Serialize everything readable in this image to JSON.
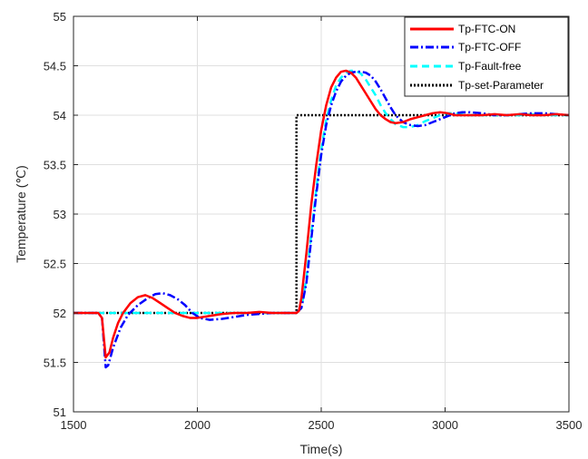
{
  "chart_data": {
    "type": "line",
    "title": "",
    "xlabel": "Time(s)",
    "ylabel": "Temperature (℃)",
    "xlim": [
      1500,
      3500
    ],
    "ylim": [
      51,
      55
    ],
    "x_ticks": [
      1500,
      2000,
      2500,
      3000,
      3500
    ],
    "y_ticks": [
      51,
      51.5,
      52,
      52.5,
      53,
      53.5,
      54,
      54.5,
      55
    ],
    "x_tick_labels": [
      "1500",
      "2000",
      "2500",
      "3000",
      "3500"
    ],
    "y_tick_labels": [
      "51",
      "51.5",
      "52",
      "52.5",
      "53",
      "53.5",
      "54",
      "54.5",
      "55"
    ],
    "grid": true,
    "legend_position": "top-right",
    "series": [
      {
        "name": "Tp-FTC-ON",
        "color": "#ff0000",
        "style": "solid",
        "x": [
          1500,
          1600,
          1615,
          1630,
          1645,
          1660,
          1680,
          1700,
          1730,
          1760,
          1790,
          1820,
          1850,
          1880,
          1910,
          1940,
          1970,
          2000,
          2050,
          2100,
          2150,
          2200,
          2250,
          2300,
          2350,
          2400,
          2410,
          2420,
          2440,
          2460,
          2480,
          2500,
          2520,
          2540,
          2560,
          2580,
          2600,
          2620,
          2640,
          2660,
          2680,
          2700,
          2720,
          2740,
          2760,
          2780,
          2800,
          2830,
          2860,
          2890,
          2920,
          2950,
          2980,
          3010,
          3040,
          3070,
          3100,
          3150,
          3200,
          3250,
          3300,
          3350,
          3400,
          3450,
          3500
        ],
        "values": [
          52.0,
          52.0,
          51.95,
          51.55,
          51.6,
          51.75,
          51.9,
          52.0,
          52.1,
          52.16,
          52.18,
          52.15,
          52.1,
          52.05,
          52.0,
          51.97,
          51.95,
          51.95,
          51.97,
          51.99,
          52.0,
          52.0,
          52.01,
          52.0,
          52.0,
          52.0,
          52.02,
          52.15,
          52.6,
          53.1,
          53.5,
          53.85,
          54.1,
          54.28,
          54.38,
          54.44,
          54.45,
          54.43,
          54.38,
          54.3,
          54.22,
          54.14,
          54.06,
          54.0,
          53.96,
          53.93,
          53.92,
          53.93,
          53.96,
          53.98,
          54.0,
          54.02,
          54.03,
          54.02,
          54.0,
          54.0,
          54.0,
          54.0,
          54.01,
          54.0,
          54.01,
          54.0,
          54.0,
          54.01,
          54.0
        ]
      },
      {
        "name": "Tp-FTC-OFF",
        "color": "#0000ff",
        "style": "dashdot",
        "x": [
          1500,
          1600,
          1615,
          1630,
          1640,
          1660,
          1690,
          1720,
          1760,
          1800,
          1830,
          1860,
          1890,
          1920,
          1950,
          1980,
          2010,
          2050,
          2100,
          2150,
          2200,
          2250,
          2300,
          2350,
          2400,
          2420,
          2440,
          2460,
          2480,
          2500,
          2520,
          2540,
          2560,
          2580,
          2600,
          2620,
          2640,
          2660,
          2680,
          2700,
          2720,
          2740,
          2760,
          2780,
          2800,
          2830,
          2860,
          2890,
          2920,
          2950,
          2980,
          3010,
          3040,
          3070,
          3100,
          3150,
          3200,
          3250,
          3300,
          3350,
          3400,
          3450,
          3500
        ],
        "values": [
          52.0,
          52.0,
          51.95,
          51.45,
          51.47,
          51.65,
          51.85,
          51.98,
          52.08,
          52.15,
          52.19,
          52.2,
          52.18,
          52.14,
          52.08,
          52.0,
          51.95,
          51.93,
          51.94,
          51.96,
          51.98,
          51.99,
          52.0,
          52.0,
          52.0,
          52.05,
          52.3,
          52.75,
          53.2,
          53.6,
          53.9,
          54.1,
          54.24,
          54.34,
          54.4,
          54.43,
          54.44,
          54.44,
          54.43,
          54.4,
          54.34,
          54.26,
          54.17,
          54.08,
          54.0,
          53.93,
          53.9,
          53.89,
          53.9,
          53.93,
          53.96,
          53.99,
          54.02,
          54.03,
          54.03,
          54.02,
          54.0,
          54.0,
          54.01,
          54.02,
          54.02,
          54.01,
          54.0
        ]
      },
      {
        "name": "Tp-Fault-free",
        "color": "#00ffff",
        "style": "dashed",
        "x": [
          1500,
          1700,
          1900,
          2100,
          2300,
          2400,
          2420,
          2440,
          2460,
          2480,
          2500,
          2520,
          2540,
          2560,
          2580,
          2600,
          2620,
          2640,
          2660,
          2680,
          2700,
          2720,
          2740,
          2760,
          2780,
          2800,
          2830,
          2860,
          2890,
          2920,
          2950,
          2980,
          3010,
          3040,
          3070,
          3100,
          3150,
          3200,
          3250,
          3300,
          3350,
          3400,
          3450,
          3500
        ],
        "values": [
          52.0,
          52.0,
          52.0,
          52.0,
          52.0,
          52.0,
          52.05,
          52.35,
          52.8,
          53.25,
          53.65,
          53.95,
          54.15,
          54.3,
          54.38,
          54.43,
          54.45,
          54.45,
          54.42,
          54.36,
          54.28,
          54.2,
          54.1,
          54.02,
          53.96,
          53.91,
          53.88,
          53.88,
          53.9,
          53.94,
          53.97,
          54.0,
          54.02,
          54.02,
          54.01,
          54.0,
          54.0,
          54.0,
          54.0,
          54.0,
          54.01,
          54.0,
          54.0,
          54.0
        ]
      },
      {
        "name": "Tp-set-Parameter",
        "color": "#000000",
        "style": "dotted",
        "x": [
          1500,
          2400,
          2400,
          3500
        ],
        "values": [
          52.0,
          52.0,
          54.0,
          54.0
        ]
      }
    ]
  }
}
